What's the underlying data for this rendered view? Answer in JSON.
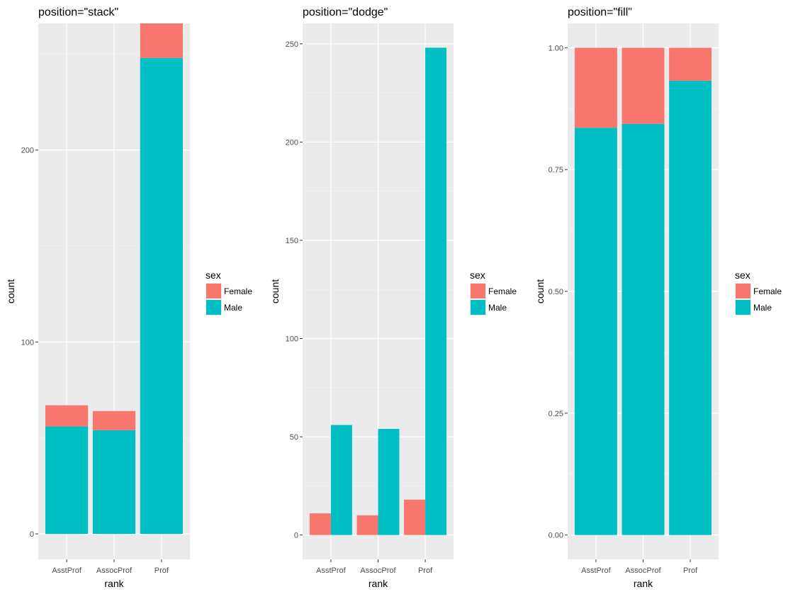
{
  "legend": {
    "title": "sex",
    "items": [
      {
        "label": "Female",
        "color": "#F8766D"
      },
      {
        "label": "Male",
        "color": "#00BFC4"
      }
    ]
  },
  "chart_data": [
    {
      "type": "bar",
      "title": "position=\"stack\"",
      "xlabel": "rank",
      "ylabel": "count",
      "position": "stack",
      "categories": [
        "AsstProf",
        "AssocProf",
        "Prof"
      ],
      "series": [
        {
          "name": "Female",
          "values": [
            11,
            10,
            18
          ]
        },
        {
          "name": "Male",
          "values": [
            56,
            54,
            248
          ]
        }
      ],
      "yticks": [
        0,
        100,
        200
      ],
      "ytick_labels": [
        "0",
        "100",
        "200"
      ],
      "ylim": [
        -13.3,
        266.0
      ],
      "grid": true,
      "legend_position": "right"
    },
    {
      "type": "bar",
      "title": "position=\"dodge\"",
      "xlabel": "rank",
      "ylabel": "count",
      "position": "dodge",
      "categories": [
        "AsstProf",
        "AssocProf",
        "Prof"
      ],
      "series": [
        {
          "name": "Female",
          "values": [
            11,
            10,
            18
          ]
        },
        {
          "name": "Male",
          "values": [
            56,
            54,
            248
          ]
        }
      ],
      "yticks": [
        0,
        50,
        100,
        150,
        200,
        250
      ],
      "ytick_labels": [
        "0",
        "50",
        "100",
        "150",
        "200",
        "250"
      ],
      "ylim": [
        -12.4,
        260.4
      ],
      "grid": true,
      "legend_position": "right"
    },
    {
      "type": "bar",
      "title": "position=\"fill\"",
      "xlabel": "rank",
      "ylabel": "count",
      "position": "fill",
      "categories": [
        "AsstProf",
        "AssocProf",
        "Prof"
      ],
      "series": [
        {
          "name": "Female",
          "values": [
            11,
            10,
            18
          ]
        },
        {
          "name": "Male",
          "values": [
            56,
            54,
            248
          ]
        }
      ],
      "yticks": [
        0,
        0.25,
        0.5,
        0.75,
        1.0
      ],
      "ytick_labels": [
        "0.00",
        "0.25",
        "0.50",
        "0.75",
        "1.00"
      ],
      "ylim": [
        -0.05,
        1.05
      ],
      "grid": true,
      "legend_position": "right"
    }
  ]
}
